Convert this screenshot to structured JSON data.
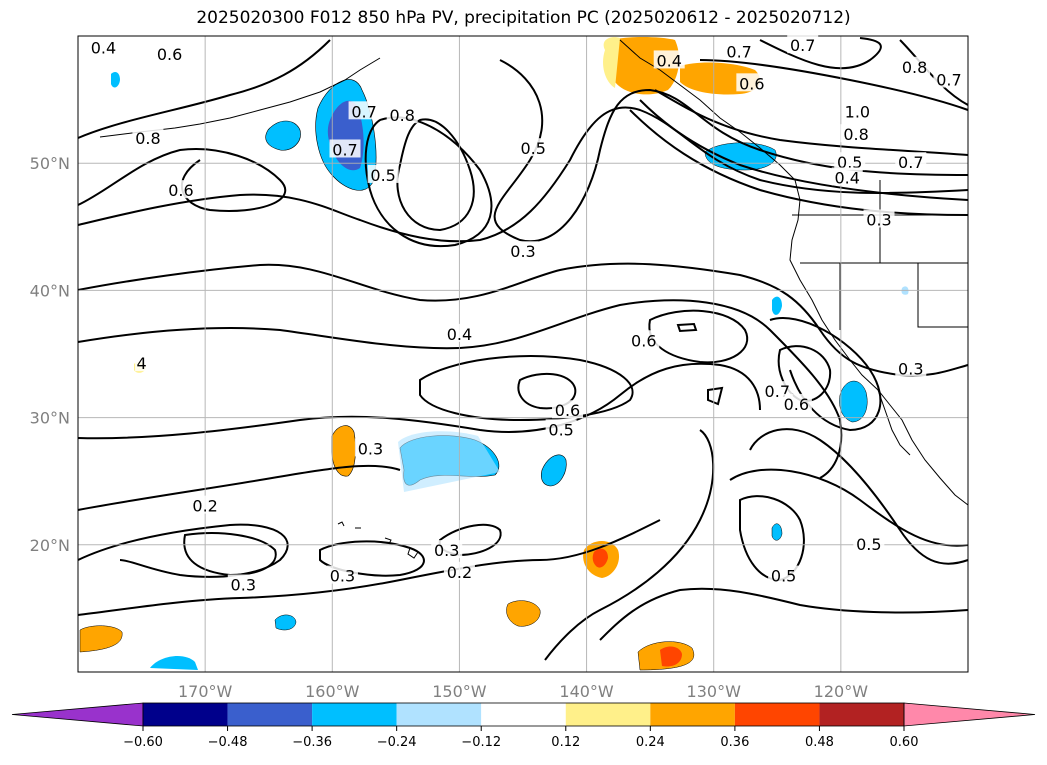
{
  "title": "2025020300 F012 850 hPa PV, precipitation PC (2025020612 - 2025020712)",
  "map": {
    "lon_range": [
      -180,
      -110
    ],
    "lat_range": [
      10,
      60
    ],
    "grid": true,
    "lon_ticks": [
      "170°W",
      "160°W",
      "150°W",
      "140°W",
      "130°W",
      "120°W"
    ],
    "lat_ticks": [
      "20°N",
      "30°N",
      "40°N",
      "50°N"
    ],
    "contour_labels": [
      {
        "text": "0.4",
        "lon": -178.0,
        "lat": 59.0
      },
      {
        "text": "0.6",
        "lon": -172.8,
        "lat": 58.5
      },
      {
        "text": "0.8",
        "lon": -174.5,
        "lat": 51.9
      },
      {
        "text": "0.6",
        "lon": -171.9,
        "lat": 47.8
      },
      {
        "text": "0.7",
        "lon": -159.0,
        "lat": 51.0
      },
      {
        "text": "0.5",
        "lon": -156.0,
        "lat": 49.0
      },
      {
        "text": "0.7",
        "lon": -157.5,
        "lat": 54.0
      },
      {
        "text": "0.8",
        "lon": -154.5,
        "lat": 53.7
      },
      {
        "text": "0.5",
        "lon": -144.2,
        "lat": 51.1
      },
      {
        "text": "0.3",
        "lon": -145.0,
        "lat": 43.0
      },
      {
        "text": "0.4",
        "lon": -150.0,
        "lat": 36.5
      },
      {
        "text": "0.6",
        "lon": -135.5,
        "lat": 36.0
      },
      {
        "text": "0.6",
        "lon": -141.5,
        "lat": 30.5
      },
      {
        "text": "0.5",
        "lon": -142.0,
        "lat": 29.0
      },
      {
        "text": "0.3",
        "lon": -157.0,
        "lat": 27.5
      },
      {
        "text": "0.2",
        "lon": -170.0,
        "lat": 23.0
      },
      {
        "text": "0.3",
        "lon": -167.0,
        "lat": 16.8
      },
      {
        "text": "0.3",
        "lon": -159.2,
        "lat": 17.5
      },
      {
        "text": "0.3",
        "lon": -151.0,
        "lat": 19.5
      },
      {
        "text": "0.2",
        "lon": -150.0,
        "lat": 17.8
      },
      {
        "text": "0.7",
        "lon": -125.0,
        "lat": 32.0
      },
      {
        "text": "0.6",
        "lon": -123.5,
        "lat": 31.0
      },
      {
        "text": "0.3",
        "lon": -114.5,
        "lat": 33.8
      },
      {
        "text": "0.5",
        "lon": -124.5,
        "lat": 17.5
      },
      {
        "text": "0.5",
        "lon": -117.8,
        "lat": 20.0
      },
      {
        "text": "0.4",
        "lon": -133.5,
        "lat": 58.0
      },
      {
        "text": "0.7",
        "lon": -128.0,
        "lat": 58.7
      },
      {
        "text": "0.6",
        "lon": -127.0,
        "lat": 56.2
      },
      {
        "text": "0.7",
        "lon": -123.0,
        "lat": 59.2
      },
      {
        "text": "0.8",
        "lon": -114.2,
        "lat": 57.5
      },
      {
        "text": "0.7",
        "lon": -111.5,
        "lat": 56.5
      },
      {
        "text": "1.0",
        "lon": -118.7,
        "lat": 54.0
      },
      {
        "text": "0.8",
        "lon": -118.8,
        "lat": 52.2
      },
      {
        "text": "0.7",
        "lon": -114.5,
        "lat": 50.0
      },
      {
        "text": "0.5",
        "lon": -119.3,
        "lat": 50.0
      },
      {
        "text": "0.4",
        "lon": -119.5,
        "lat": 48.8
      },
      {
        "text": "0.3",
        "lon": -117.0,
        "lat": 45.5
      },
      {
        "text": "4",
        "lon": -175.0,
        "lat": 34.2
      }
    ]
  },
  "colorbar": {
    "tick_labels": [
      "−0.60",
      "−0.48",
      "−0.36",
      "−0.24",
      "−0.12",
      "0.12",
      "0.24",
      "0.36",
      "0.48",
      "0.60"
    ],
    "colors": [
      "#9932cc",
      "#00008b",
      "#3a5fcd",
      "#00bfff",
      "#b0e2ff",
      "#ffffff",
      "#fff08a",
      "#ffa500",
      "#ff4500",
      "#b22222",
      "#ff88aa"
    ]
  }
}
